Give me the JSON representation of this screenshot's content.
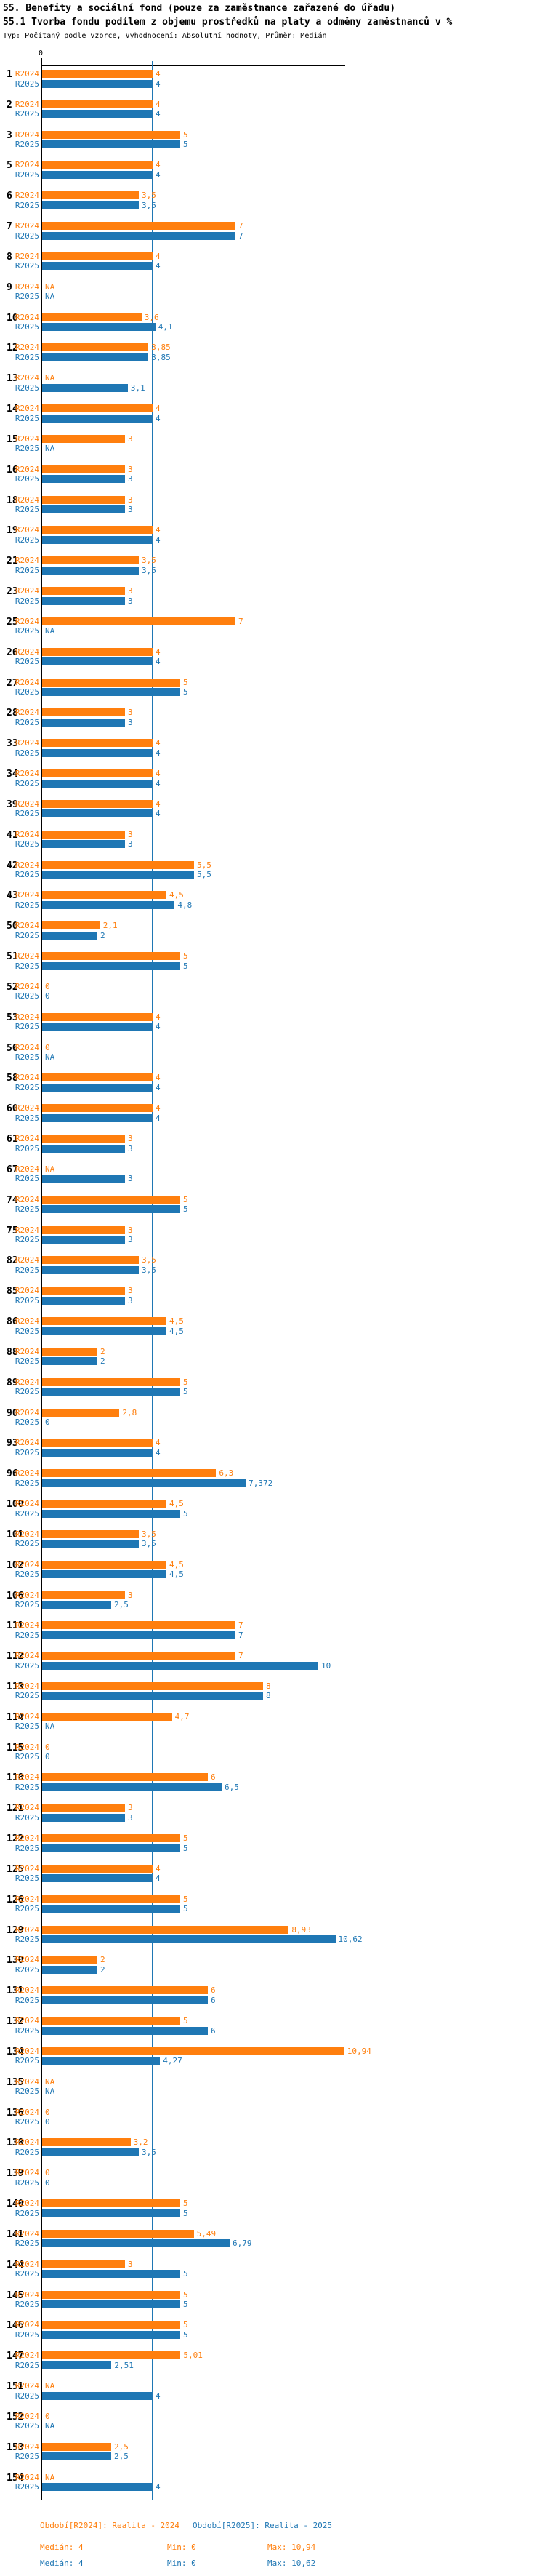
{
  "header": {
    "title_line1": "55. Benefity a sociální fond (pouze za zaměstnance zařazené do úřadu)",
    "title_line2": "55.1 Tvorba fondu podílem z objemu prostředků na platy a odměny zaměstnanců v %",
    "meta_line": "Typ: Počítaný podle vzorce, Vyhodnocení: Absolutní hodnoty, Průměr: Medián"
  },
  "chart_data": {
    "type": "bar",
    "orientation": "horizontal",
    "title": "55.1 Tvorba fondu podílem z objemu prostředků na platy a odměny zaměstnanců v %",
    "series": [
      {
        "name": "R2024",
        "label": "R2024",
        "color": "#ff7f0e"
      },
      {
        "name": "R2025",
        "label": "R2025",
        "color": "#1f77b4"
      }
    ],
    "axis": {
      "zero_tick_label": "0",
      "min": 0,
      "max": 11,
      "median_gridline_value": 4,
      "gridline_color": "#1f77b4",
      "na_text": "NA"
    },
    "groups_columns": [
      "office_id",
      "r2024_value",
      "r2024_label",
      "r2025_value",
      "r2025_label"
    ],
    "groups": [
      [
        "1",
        4,
        "4",
        4,
        "4"
      ],
      [
        "2",
        4,
        "4",
        4,
        "4"
      ],
      [
        "3",
        5,
        "5",
        5,
        "5"
      ],
      [
        "5",
        4,
        "4",
        4,
        "4"
      ],
      [
        "6",
        3.5,
        "3,5",
        3.5,
        "3,5"
      ],
      [
        "7",
        7,
        "7",
        7,
        "7"
      ],
      [
        "8",
        4,
        "4",
        4,
        "4"
      ],
      [
        "9",
        null,
        "NA",
        null,
        "NA"
      ],
      [
        "10",
        3.6,
        "3,6",
        4.1,
        "4,1"
      ],
      [
        "12",
        3.85,
        "3,85",
        3.85,
        "3,85"
      ],
      [
        "13",
        null,
        "NA",
        3.1,
        "3,1"
      ],
      [
        "14",
        4,
        "4",
        4,
        "4"
      ],
      [
        "15",
        3,
        "3",
        null,
        "NA"
      ],
      [
        "16",
        3,
        "3",
        3,
        "3"
      ],
      [
        "18",
        3,
        "3",
        3,
        "3"
      ],
      [
        "19",
        4,
        "4",
        4,
        "4"
      ],
      [
        "21",
        3.5,
        "3,5",
        3.5,
        "3,5"
      ],
      [
        "23",
        3,
        "3",
        3,
        "3"
      ],
      [
        "25",
        7,
        "7",
        null,
        "NA"
      ],
      [
        "26",
        4,
        "4",
        4,
        "4"
      ],
      [
        "27",
        5,
        "5",
        5,
        "5"
      ],
      [
        "28",
        3,
        "3",
        3,
        "3"
      ],
      [
        "33",
        4,
        "4",
        4,
        "4"
      ],
      [
        "34",
        4,
        "4",
        4,
        "4"
      ],
      [
        "39",
        4,
        "4",
        4,
        "4"
      ],
      [
        "41",
        3,
        "3",
        3,
        "3"
      ],
      [
        "42",
        5.5,
        "5,5",
        5.5,
        "5,5"
      ],
      [
        "43",
        4.5,
        "4,5",
        4.8,
        "4,8"
      ],
      [
        "50",
        2.1,
        "2,1",
        2,
        "2"
      ],
      [
        "51",
        5,
        "5",
        5,
        "5"
      ],
      [
        "52",
        0,
        "0",
        0,
        "0"
      ],
      [
        "53",
        4,
        "4",
        4,
        "4"
      ],
      [
        "56",
        0,
        "0",
        null,
        "NA"
      ],
      [
        "58",
        4,
        "4",
        4,
        "4"
      ],
      [
        "60",
        4,
        "4",
        4,
        "4"
      ],
      [
        "61",
        3,
        "3",
        3,
        "3"
      ],
      [
        "67",
        null,
        "NA",
        3,
        "3"
      ],
      [
        "74",
        5,
        "5",
        5,
        "5"
      ],
      [
        "75",
        3,
        "3",
        3,
        "3"
      ],
      [
        "82",
        3.5,
        "3,5",
        3.5,
        "3,5"
      ],
      [
        "85",
        3,
        "3",
        3,
        "3"
      ],
      [
        "86",
        4.5,
        "4,5",
        4.5,
        "4,5"
      ],
      [
        "88",
        2,
        "2",
        2,
        "2"
      ],
      [
        "89",
        5,
        "5",
        5,
        "5"
      ],
      [
        "90",
        2.8,
        "2,8",
        0,
        "0"
      ],
      [
        "93",
        4,
        "4",
        4,
        "4"
      ],
      [
        "96",
        6.3,
        "6,3",
        7.372,
        "7,372"
      ],
      [
        "100",
        4.5,
        "4,5",
        5,
        "5"
      ],
      [
        "101",
        3.5,
        "3,5",
        3.5,
        "3,5"
      ],
      [
        "102",
        4.5,
        "4,5",
        4.5,
        "4,5"
      ],
      [
        "106",
        3,
        "3",
        2.5,
        "2,5"
      ],
      [
        "111",
        7,
        "7",
        7,
        "7"
      ],
      [
        "112",
        7,
        "7",
        10,
        "10"
      ],
      [
        "113",
        8,
        "8",
        8,
        "8"
      ],
      [
        "114",
        4.7,
        "4,7",
        null,
        "NA"
      ],
      [
        "115",
        0,
        "0",
        0,
        "0"
      ],
      [
        "118",
        6,
        "6",
        6.5,
        "6,5"
      ],
      [
        "121",
        3,
        "3",
        3,
        "3"
      ],
      [
        "122",
        5,
        "5",
        5,
        "5"
      ],
      [
        "125",
        4,
        "4",
        4,
        "4"
      ],
      [
        "126",
        5,
        "5",
        5,
        "5"
      ],
      [
        "129",
        8.93,
        "8,93",
        10.62,
        "10,62"
      ],
      [
        "130",
        2,
        "2",
        2,
        "2"
      ],
      [
        "131",
        6,
        "6",
        6,
        "6"
      ],
      [
        "132",
        5,
        "5",
        6,
        "6"
      ],
      [
        "134",
        10.94,
        "10,94",
        4.27,
        "4,27"
      ],
      [
        "135",
        null,
        "NA",
        null,
        "NA"
      ],
      [
        "136",
        0,
        "0",
        0,
        "0"
      ],
      [
        "138",
        3.2,
        "3,2",
        3.5,
        "3,5"
      ],
      [
        "139",
        0,
        "0",
        0,
        "0"
      ],
      [
        "140",
        5,
        "5",
        5,
        "5"
      ],
      [
        "141",
        5.49,
        "5,49",
        6.79,
        "6,79"
      ],
      [
        "144",
        3,
        "3",
        5,
        "5"
      ],
      [
        "145",
        5,
        "5",
        5,
        "5"
      ],
      [
        "146",
        5,
        "5",
        5,
        "5"
      ],
      [
        "147",
        5.01,
        "5,01",
        2.51,
        "2,51"
      ],
      [
        "151",
        null,
        "NA",
        4,
        "4"
      ],
      [
        "152",
        0,
        "0",
        null,
        "NA"
      ],
      [
        "153",
        2.5,
        "2,5",
        2.5,
        "2,5"
      ],
      [
        "154",
        null,
        "NA",
        4,
        "4"
      ]
    ]
  },
  "legend": {
    "period_r2024": "Období[R2024]: Realita - 2024",
    "period_r2025": "Období[R2025]: Realita - 2025",
    "stats_r2024": {
      "median": "Medián: 4",
      "min": "Min: 0",
      "max": "Max: 10,94"
    },
    "stats_r2025": {
      "median": "Medián: 4",
      "min": "Min: 0",
      "max": "Max: 10,62"
    }
  }
}
